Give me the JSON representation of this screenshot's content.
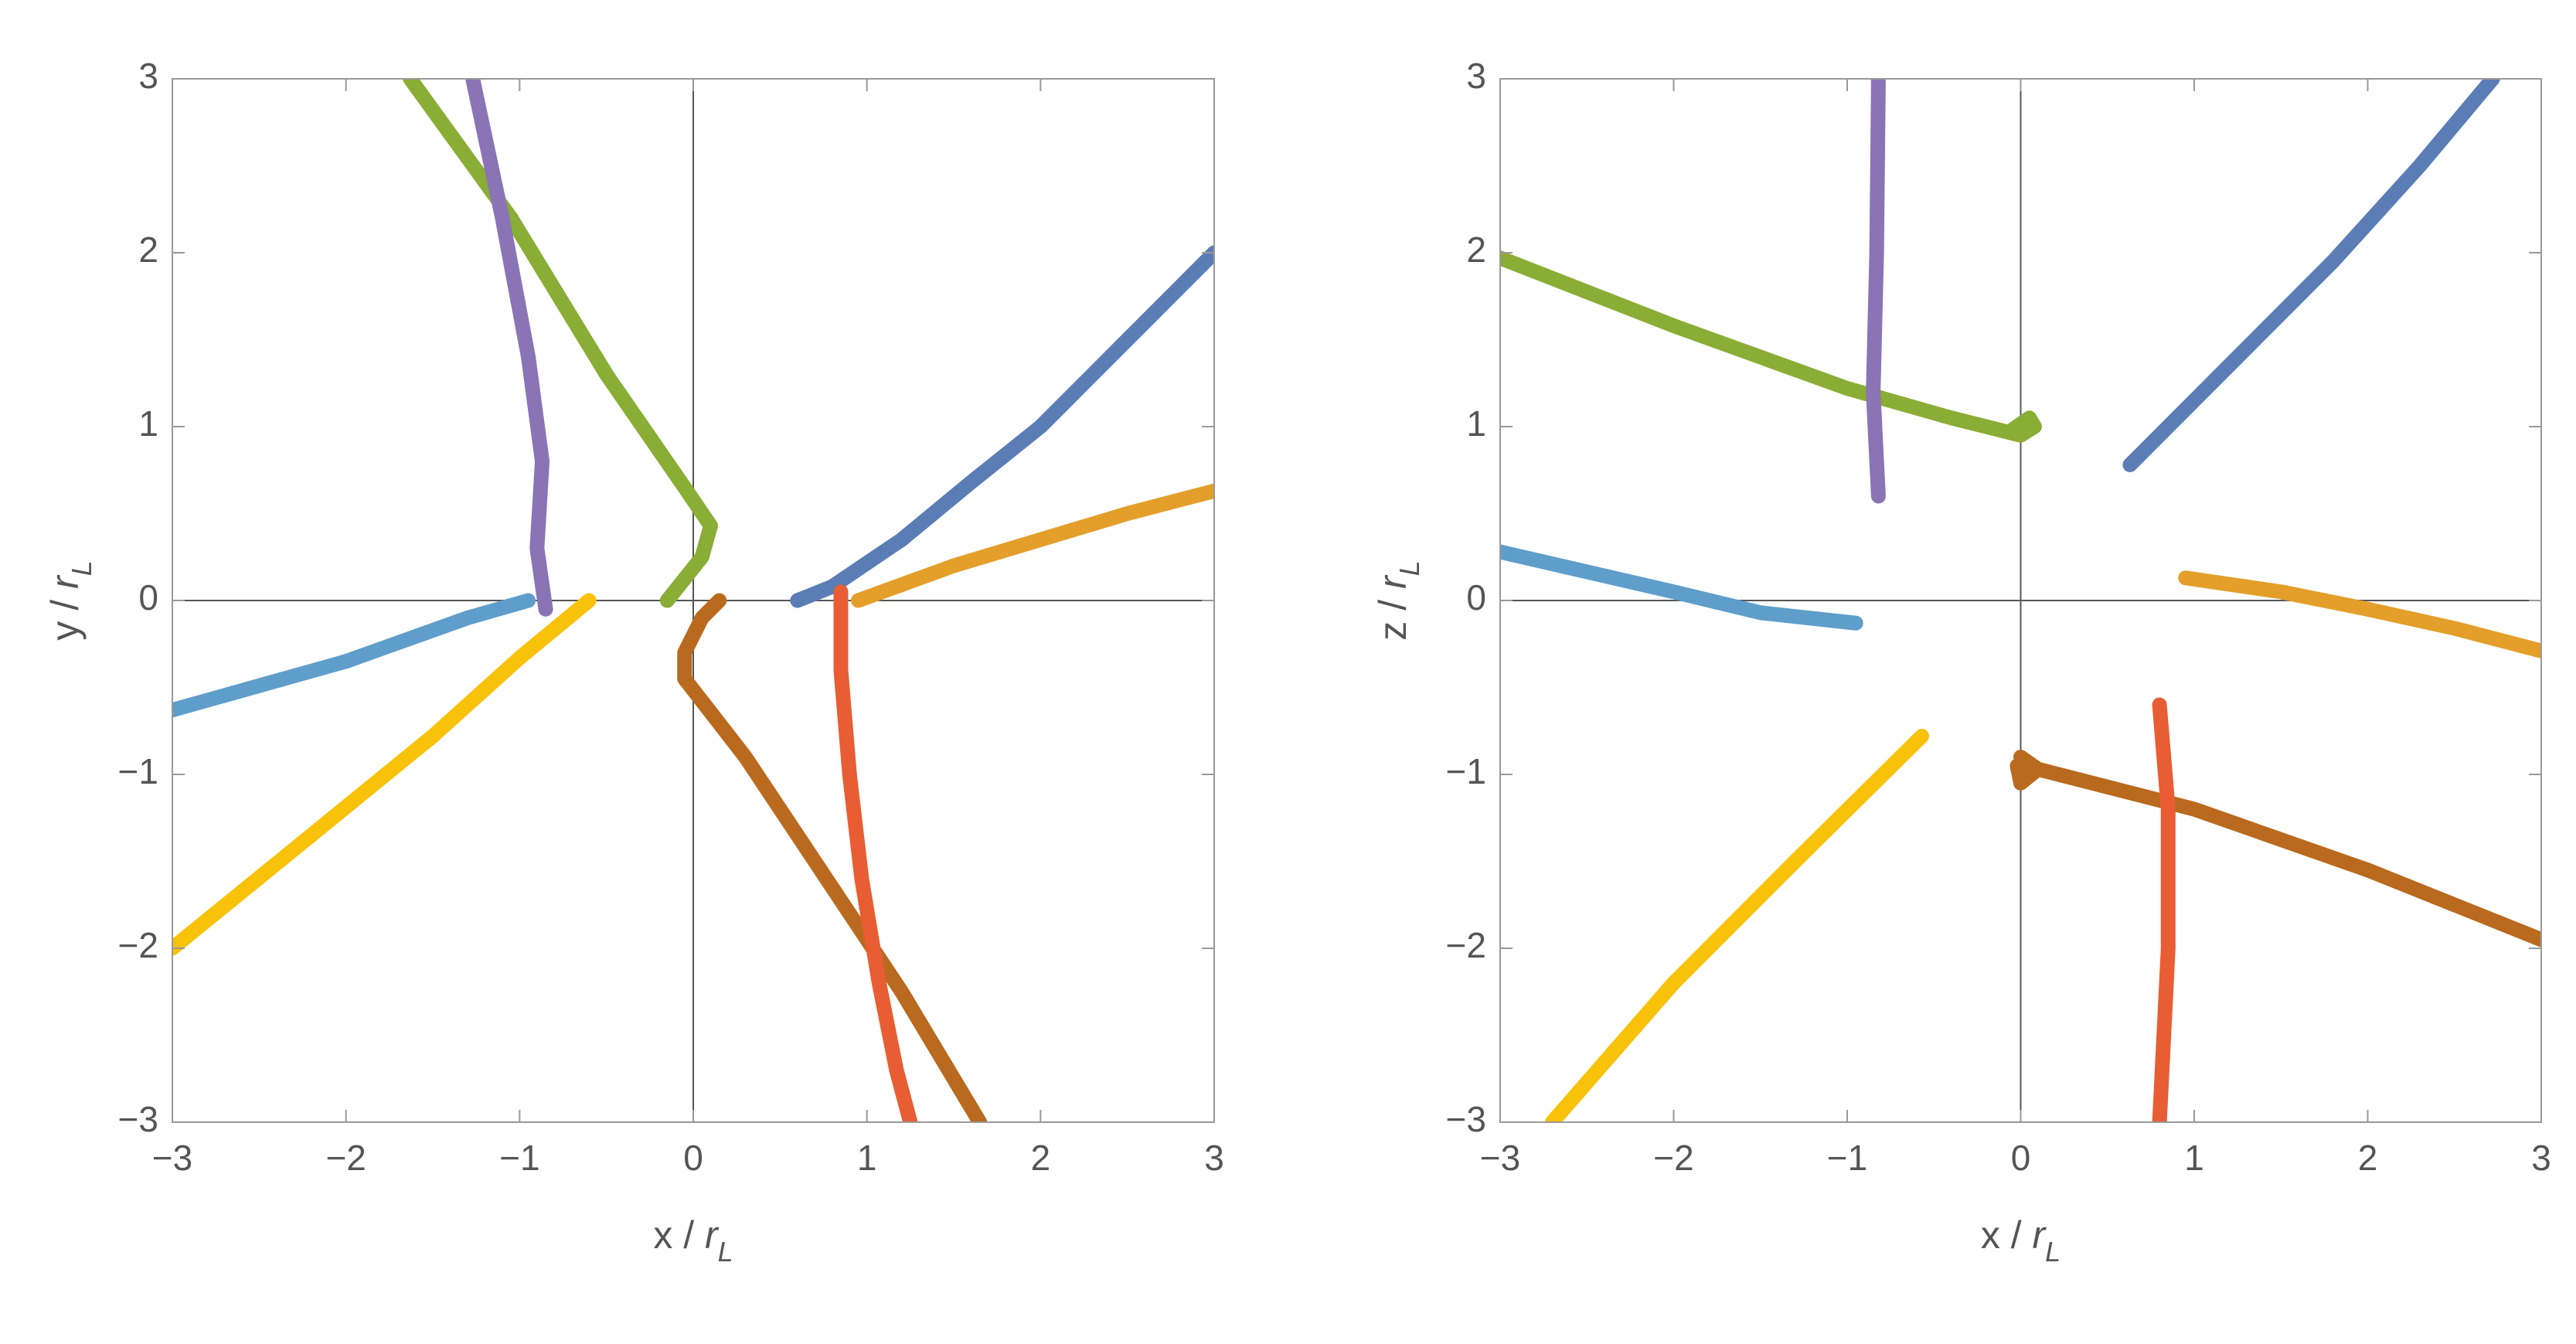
{
  "chart_data": [
    {
      "type": "line",
      "xlabel": [
        "x / ",
        "r",
        "L"
      ],
      "ylabel": [
        "y / ",
        "r",
        "L"
      ],
      "xlim": [
        -3,
        3
      ],
      "ylim": [
        -3,
        3
      ],
      "xticks": [
        {
          "value": -3,
          "label": "−3"
        },
        {
          "value": -2,
          "label": "−2"
        },
        {
          "value": -1,
          "label": "−1"
        },
        0,
        1,
        2,
        3
      ],
      "yticks": [
        {
          "value": -3,
          "label": "−3"
        },
        {
          "value": -2,
          "label": "−2"
        },
        {
          "value": -1,
          "label": "−1"
        },
        0,
        1,
        2,
        3
      ],
      "series": [
        {
          "color": "#5b7db6",
          "x": [
            0.6,
            0.8,
            1.2,
            1.6,
            2,
            2.5,
            3
          ],
          "values": [
            0,
            0.08,
            0.35,
            0.68,
            1.0,
            1.5,
            2.0
          ]
        },
        {
          "color": "#e39f2a",
          "x": [
            0.95,
            1.5,
            2,
            2.5,
            3
          ],
          "values": [
            0,
            0.2,
            0.35,
            0.5,
            0.63
          ]
        },
        {
          "color": "#8aad35",
          "x": [
            -1.63,
            -1.05,
            -0.5,
            -0.05,
            0.1,
            0.05,
            -0.15
          ],
          "values": [
            3,
            2.2,
            1.3,
            0.65,
            0.43,
            0.25,
            0
          ]
        },
        {
          "color": "#8a74b5",
          "x": [
            -1.27,
            -1.1,
            -0.95,
            -0.87,
            -0.9,
            -0.85
          ],
          "values": [
            3,
            2.2,
            1.4,
            0.8,
            0.3,
            -0.05
          ]
        },
        {
          "color": "#5f9ecb",
          "x": [
            -3,
            -2,
            -1.3,
            -0.95
          ],
          "values": [
            -0.63,
            -0.35,
            -0.1,
            0
          ]
        },
        {
          "color": "#f9c20a",
          "x": [
            -3,
            -2.2,
            -1.5,
            -1,
            -0.6
          ],
          "values": [
            -2,
            -1.35,
            -0.78,
            -0.33,
            0
          ]
        },
        {
          "color": "#b96a1e",
          "x": [
            0.15,
            0.05,
            -0.05,
            -0.05,
            0.3,
            0.8,
            1.2,
            1.65
          ],
          "values": [
            0,
            -0.1,
            -0.3,
            -0.45,
            -0.9,
            -1.65,
            -2.25,
            -3
          ]
        },
        {
          "color": "#e85d33",
          "x": [
            0.85,
            0.85,
            0.9,
            0.97,
            1.07,
            1.17,
            1.25
          ],
          "values": [
            0.05,
            -0.4,
            -1.0,
            -1.6,
            -2.2,
            -2.7,
            -3
          ]
        }
      ]
    },
    {
      "type": "line",
      "xlabel": [
        "x / ",
        "r",
        "L"
      ],
      "ylabel": [
        "z / ",
        "r",
        "L"
      ],
      "xlim": [
        -3,
        3
      ],
      "ylim": [
        -3,
        3
      ],
      "xticks": [
        {
          "value": -3,
          "label": "−3"
        },
        {
          "value": -2,
          "label": "−2"
        },
        {
          "value": -1,
          "label": "−1"
        },
        0,
        1,
        2,
        3
      ],
      "yticks": [
        {
          "value": -3,
          "label": "−3"
        },
        {
          "value": -2,
          "label": "−2"
        },
        {
          "value": -1,
          "label": "−1"
        },
        0,
        1,
        2,
        3
      ],
      "series": [
        {
          "color": "#5b7db6",
          "x": [
            0.63,
            1.2,
            1.8,
            2.3,
            2.72
          ],
          "values": [
            0.78,
            1.35,
            1.95,
            2.5,
            3
          ]
        },
        {
          "color": "#e39f2a",
          "x": [
            0.95,
            1.5,
            2,
            2.5,
            3
          ],
          "values": [
            0.13,
            0.05,
            -0.05,
            -0.16,
            -0.29
          ]
        },
        {
          "color": "#8aad35",
          "x": [
            -3,
            -2,
            -1,
            -0.4,
            0,
            0.08,
            0.05,
            -0.05
          ],
          "values": [
            1.97,
            1.58,
            1.22,
            1.05,
            0.95,
            1.0,
            1.05,
            0.98
          ]
        },
        {
          "color": "#8a74b5",
          "x": [
            -0.82,
            -0.83,
            -0.85,
            -0.82
          ],
          "values": [
            3,
            2,
            1.2,
            0.6
          ]
        },
        {
          "color": "#5f9ecb",
          "x": [
            -3,
            -2,
            -1.5,
            -0.95
          ],
          "values": [
            0.28,
            0.05,
            -0.07,
            -0.13
          ]
        },
        {
          "color": "#f9c20a",
          "x": [
            -2.7,
            -2,
            -1.3,
            -0.57
          ],
          "values": [
            -3,
            -2.2,
            -1.5,
            -0.78
          ]
        },
        {
          "color": "#b96a1e",
          "x": [
            0,
            0.1,
            0,
            -0.02,
            0.1,
            1,
            2,
            3
          ],
          "values": [
            -0.9,
            -0.97,
            -1.05,
            -0.95,
            -0.97,
            -1.2,
            -1.55,
            -1.95
          ]
        },
        {
          "color": "#e85d33",
          "x": [
            0.8,
            0.85,
            0.85,
            0.8
          ],
          "values": [
            -0.6,
            -1.2,
            -2,
            -3
          ]
        }
      ]
    }
  ]
}
